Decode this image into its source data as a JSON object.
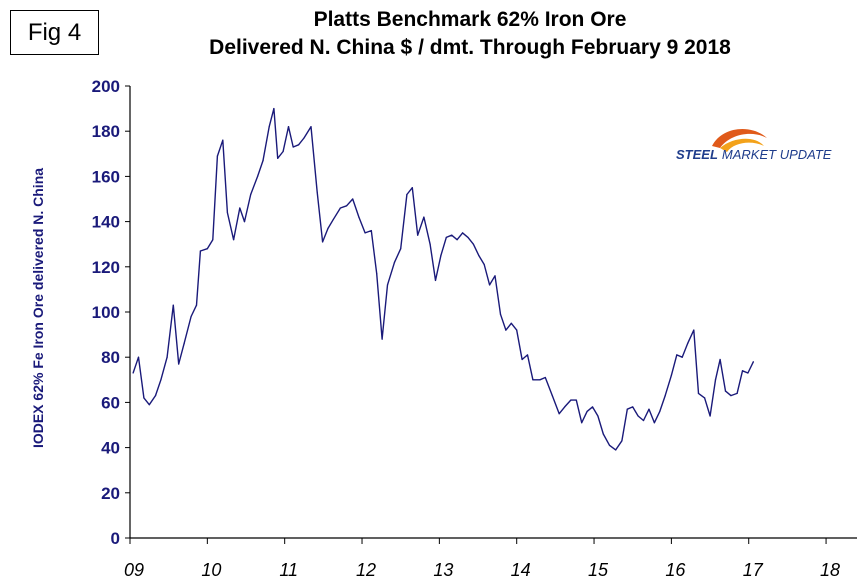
{
  "figure": {
    "label": "Fig 4"
  },
  "logo": {
    "text": "STEEL MARKET UPDATE",
    "word1": "STEEL",
    "word2": "MARKET UPDATE",
    "colors": {
      "text": "#1f3d8c",
      "swoosh": "#e05a1a",
      "swoosh2": "#f3a21a"
    }
  },
  "chart_data": {
    "type": "line",
    "title": "Platts Benchmark 62% Iron Ore",
    "subtitle": "Delivered N. China $ / dmt. Through February 9 2018",
    "xlabel": "",
    "ylabel": "IODEX 62% Fe Iron Ore delivered N. China",
    "ylim": [
      0,
      200
    ],
    "yticks": [
      0,
      20,
      40,
      60,
      80,
      100,
      120,
      140,
      160,
      180,
      200
    ],
    "xlim": [
      2009,
      2018.4
    ],
    "xticks": [
      {
        "value": 2009,
        "label": "09"
      },
      {
        "value": 2010,
        "label": "10"
      },
      {
        "value": 2011,
        "label": "11"
      },
      {
        "value": 2012,
        "label": "12"
      },
      {
        "value": 2013,
        "label": "13"
      },
      {
        "value": 2014,
        "label": "14"
      },
      {
        "value": 2015,
        "label": "15"
      },
      {
        "value": 2016,
        "label": "16"
      },
      {
        "value": 2017,
        "label": "17"
      },
      {
        "value": 2018,
        "label": "18"
      }
    ],
    "grid": false,
    "color": "#1a1a7a",
    "series": [
      {
        "name": "IODEX 62% Fe",
        "points": [
          [
            2009.04,
            73
          ],
          [
            2009.11,
            80
          ],
          [
            2009.18,
            62
          ],
          [
            2009.25,
            59
          ],
          [
            2009.33,
            63
          ],
          [
            2009.4,
            70
          ],
          [
            2009.48,
            80
          ],
          [
            2009.56,
            103
          ],
          [
            2009.63,
            77
          ],
          [
            2009.7,
            86
          ],
          [
            2009.79,
            98
          ],
          [
            2009.86,
            103
          ],
          [
            2009.91,
            127
          ],
          [
            2010.0,
            128
          ],
          [
            2010.07,
            132
          ],
          [
            2010.13,
            169
          ],
          [
            2010.2,
            176
          ],
          [
            2010.26,
            144
          ],
          [
            2010.34,
            132
          ],
          [
            2010.42,
            146
          ],
          [
            2010.48,
            140
          ],
          [
            2010.56,
            152
          ],
          [
            2010.65,
            160
          ],
          [
            2010.72,
            167
          ],
          [
            2010.8,
            182
          ],
          [
            2010.86,
            190
          ],
          [
            2010.91,
            168
          ],
          [
            2010.98,
            171
          ],
          [
            2011.05,
            182
          ],
          [
            2011.11,
            173
          ],
          [
            2011.18,
            174
          ],
          [
            2011.25,
            177
          ],
          [
            2011.34,
            182
          ],
          [
            2011.42,
            153
          ],
          [
            2011.49,
            131
          ],
          [
            2011.56,
            137
          ],
          [
            2011.63,
            141
          ],
          [
            2011.72,
            146
          ],
          [
            2011.8,
            147
          ],
          [
            2011.88,
            150
          ],
          [
            2011.96,
            142
          ],
          [
            2012.04,
            135
          ],
          [
            2012.12,
            136
          ],
          [
            2012.19,
            117
          ],
          [
            2012.26,
            88
          ],
          [
            2012.33,
            112
          ],
          [
            2012.42,
            122
          ],
          [
            2012.5,
            128
          ],
          [
            2012.58,
            152
          ],
          [
            2012.65,
            155
          ],
          [
            2012.72,
            134
          ],
          [
            2012.8,
            142
          ],
          [
            2012.88,
            130
          ],
          [
            2012.95,
            114
          ],
          [
            2013.02,
            125
          ],
          [
            2013.09,
            133
          ],
          [
            2013.16,
            134
          ],
          [
            2013.23,
            132
          ],
          [
            2013.3,
            135
          ],
          [
            2013.37,
            133
          ],
          [
            2013.44,
            130
          ],
          [
            2013.51,
            125
          ],
          [
            2013.58,
            121
          ],
          [
            2013.65,
            112
          ],
          [
            2013.72,
            116
          ],
          [
            2013.79,
            99
          ],
          [
            2013.86,
            92
          ],
          [
            2013.93,
            95
          ],
          [
            2014.0,
            92
          ],
          [
            2014.07,
            79
          ],
          [
            2014.14,
            81
          ],
          [
            2014.21,
            70
          ],
          [
            2014.3,
            70
          ],
          [
            2014.37,
            71
          ],
          [
            2014.46,
            63
          ],
          [
            2014.55,
            55
          ],
          [
            2014.62,
            58
          ],
          [
            2014.7,
            61
          ],
          [
            2014.77,
            61
          ],
          [
            2014.84,
            51
          ],
          [
            2014.91,
            56
          ],
          [
            2014.98,
            58
          ],
          [
            2015.05,
            54
          ],
          [
            2015.12,
            46
          ],
          [
            2015.2,
            41
          ],
          [
            2015.28,
            39
          ],
          [
            2015.36,
            43
          ],
          [
            2015.43,
            57
          ],
          [
            2015.5,
            58
          ],
          [
            2015.57,
            54
          ],
          [
            2015.64,
            52
          ],
          [
            2015.71,
            57
          ],
          [
            2015.78,
            51
          ],
          [
            2015.85,
            56
          ],
          [
            2015.92,
            63
          ],
          [
            2016.0,
            72
          ],
          [
            2016.07,
            81
          ],
          [
            2016.14,
            80
          ],
          [
            2016.21,
            86
          ],
          [
            2016.29,
            92
          ],
          [
            2016.35,
            64
          ],
          [
            2016.43,
            62
          ],
          [
            2016.5,
            54
          ],
          [
            2016.57,
            70
          ],
          [
            2016.63,
            79
          ],
          [
            2016.7,
            65
          ],
          [
            2016.77,
            63
          ],
          [
            2016.85,
            64
          ],
          [
            2016.92,
            74
          ],
          [
            2016.99,
            73
          ],
          [
            2017.06,
            78
          ]
        ]
      }
    ]
  }
}
